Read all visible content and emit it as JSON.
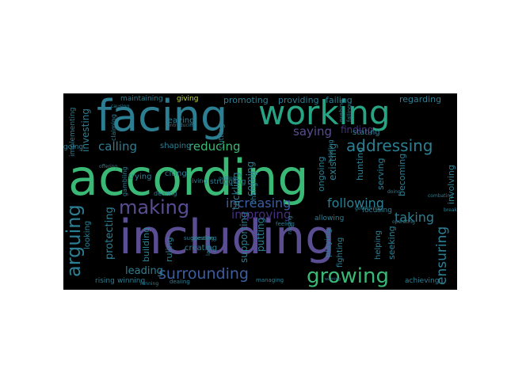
{
  "word_cloud": {
    "background": "#000000",
    "words": [
      {
        "text": "according",
        "color_group": "green"
      },
      {
        "text": "including",
        "color_group": "purple"
      },
      {
        "text": "facing",
        "color_group": "teal"
      },
      {
        "text": "working",
        "color_group": "aqua"
      },
      {
        "text": "making",
        "color_group": "purple"
      },
      {
        "text": "growing",
        "color_group": "green"
      },
      {
        "text": "surrounding",
        "color_group": "blue"
      },
      {
        "text": "increasing",
        "color_group": "blue"
      },
      {
        "text": "following",
        "color_group": "teal"
      },
      {
        "text": "addressing",
        "color_group": "teal"
      },
      {
        "text": "reducing",
        "color_group": "green"
      },
      {
        "text": "calling",
        "color_group": "teal"
      },
      {
        "text": "saying",
        "color_group": "purple"
      },
      {
        "text": "improving",
        "color_group": "dpurp"
      },
      {
        "text": "taking",
        "color_group": "teal"
      },
      {
        "text": "ensuring",
        "color_group": "teal"
      },
      {
        "text": "leading",
        "color_group": "teal"
      },
      {
        "text": "finding",
        "color_group": "dpurp"
      },
      {
        "text": "maintaining",
        "color_group": "teal"
      },
      {
        "text": "giving",
        "color_group": "yellow"
      },
      {
        "text": "promoting",
        "color_group": "teal"
      },
      {
        "text": "providing",
        "color_group": "teal"
      },
      {
        "text": "failing",
        "color_group": "teal"
      },
      {
        "text": "regarding",
        "color_group": "teal"
      },
      {
        "text": "leaving",
        "color_group": "teal"
      },
      {
        "text": "cutting",
        "color_group": "teal"
      },
      {
        "text": "shaping",
        "color_group": "teal"
      },
      {
        "text": "stating",
        "color_group": "teal"
      },
      {
        "text": "trying",
        "color_group": "teal"
      },
      {
        "text": "citing",
        "color_group": "teal"
      },
      {
        "text": "living",
        "color_group": "teal"
      },
      {
        "text": "struggling",
        "color_group": "teal"
      },
      {
        "text": "protecting",
        "color_group": "teal"
      },
      {
        "text": "rising",
        "color_group": "blue"
      },
      {
        "text": "winning",
        "color_group": "teal"
      },
      {
        "text": "creating",
        "color_group": "teal"
      },
      {
        "text": "suggesting",
        "color_group": "teal"
      },
      {
        "text": "ruling",
        "color_group": "teal"
      },
      {
        "text": "achieving",
        "color_group": "teal"
      },
      {
        "text": "involving",
        "color_group": "teal"
      },
      {
        "text": "focusing",
        "color_group": "teal"
      },
      {
        "text": "seeking",
        "color_group": "teal"
      },
      {
        "text": "helping",
        "color_group": "teal"
      },
      {
        "text": "becoming",
        "color_group": "teal"
      },
      {
        "text": "serving",
        "color_group": "teal"
      },
      {
        "text": "existing",
        "color_group": "teal"
      },
      {
        "text": "ongoing",
        "color_group": "teal"
      },
      {
        "text": "tackling",
        "color_group": "teal"
      },
      {
        "text": "coming",
        "color_group": "teal"
      },
      {
        "text": "hunting",
        "color_group": "teal"
      },
      {
        "text": "supporting",
        "color_group": "teal"
      },
      {
        "text": "putting",
        "color_group": "teal"
      },
      {
        "text": "raising",
        "color_group": "teal"
      },
      {
        "text": "going",
        "color_group": "teal"
      },
      {
        "text": "investing",
        "color_group": "teal"
      },
      {
        "text": "implementing",
        "color_group": "teal"
      },
      {
        "text": "arguing",
        "color_group": "teal"
      },
      {
        "text": "looking",
        "color_group": "teal"
      },
      {
        "text": "offering",
        "color_group": "teal"
      },
      {
        "text": "speaking",
        "color_group": "teal"
      },
      {
        "text": "gambling",
        "color_group": "teal"
      },
      {
        "text": "managing",
        "color_group": "teal"
      },
      {
        "text": "dealing",
        "color_group": "teal"
      },
      {
        "text": "running",
        "color_group": "teal"
      },
      {
        "text": "building",
        "color_group": "teal"
      },
      {
        "text": "allowing",
        "color_group": "teal"
      },
      {
        "text": "changing",
        "color_group": "teal"
      },
      {
        "text": "fighting",
        "color_group": "teal"
      },
      {
        "text": "feeling",
        "color_group": "teal"
      },
      {
        "text": "playing",
        "color_group": "teal"
      },
      {
        "text": "holding",
        "color_group": "teal"
      },
      {
        "text": "pushing",
        "color_group": "teal"
      },
      {
        "text": "falling",
        "color_group": "teal"
      },
      {
        "text": "warning",
        "color_group": "teal"
      },
      {
        "text": "breaking",
        "color_group": "teal"
      },
      {
        "text": "combating",
        "color_group": "teal"
      },
      {
        "text": "claiming",
        "color_group": "teal"
      },
      {
        "text": "causing",
        "color_group": "teal"
      },
      {
        "text": "introducing",
        "color_group": "teal"
      },
      {
        "text": "getting",
        "color_group": "teal"
      },
      {
        "text": "governing",
        "color_group": "teal"
      },
      {
        "text": "lacking",
        "color_group": "teal"
      },
      {
        "text": "operating",
        "color_group": "teal"
      },
      {
        "text": "doing",
        "color_group": "teal"
      }
    ]
  }
}
